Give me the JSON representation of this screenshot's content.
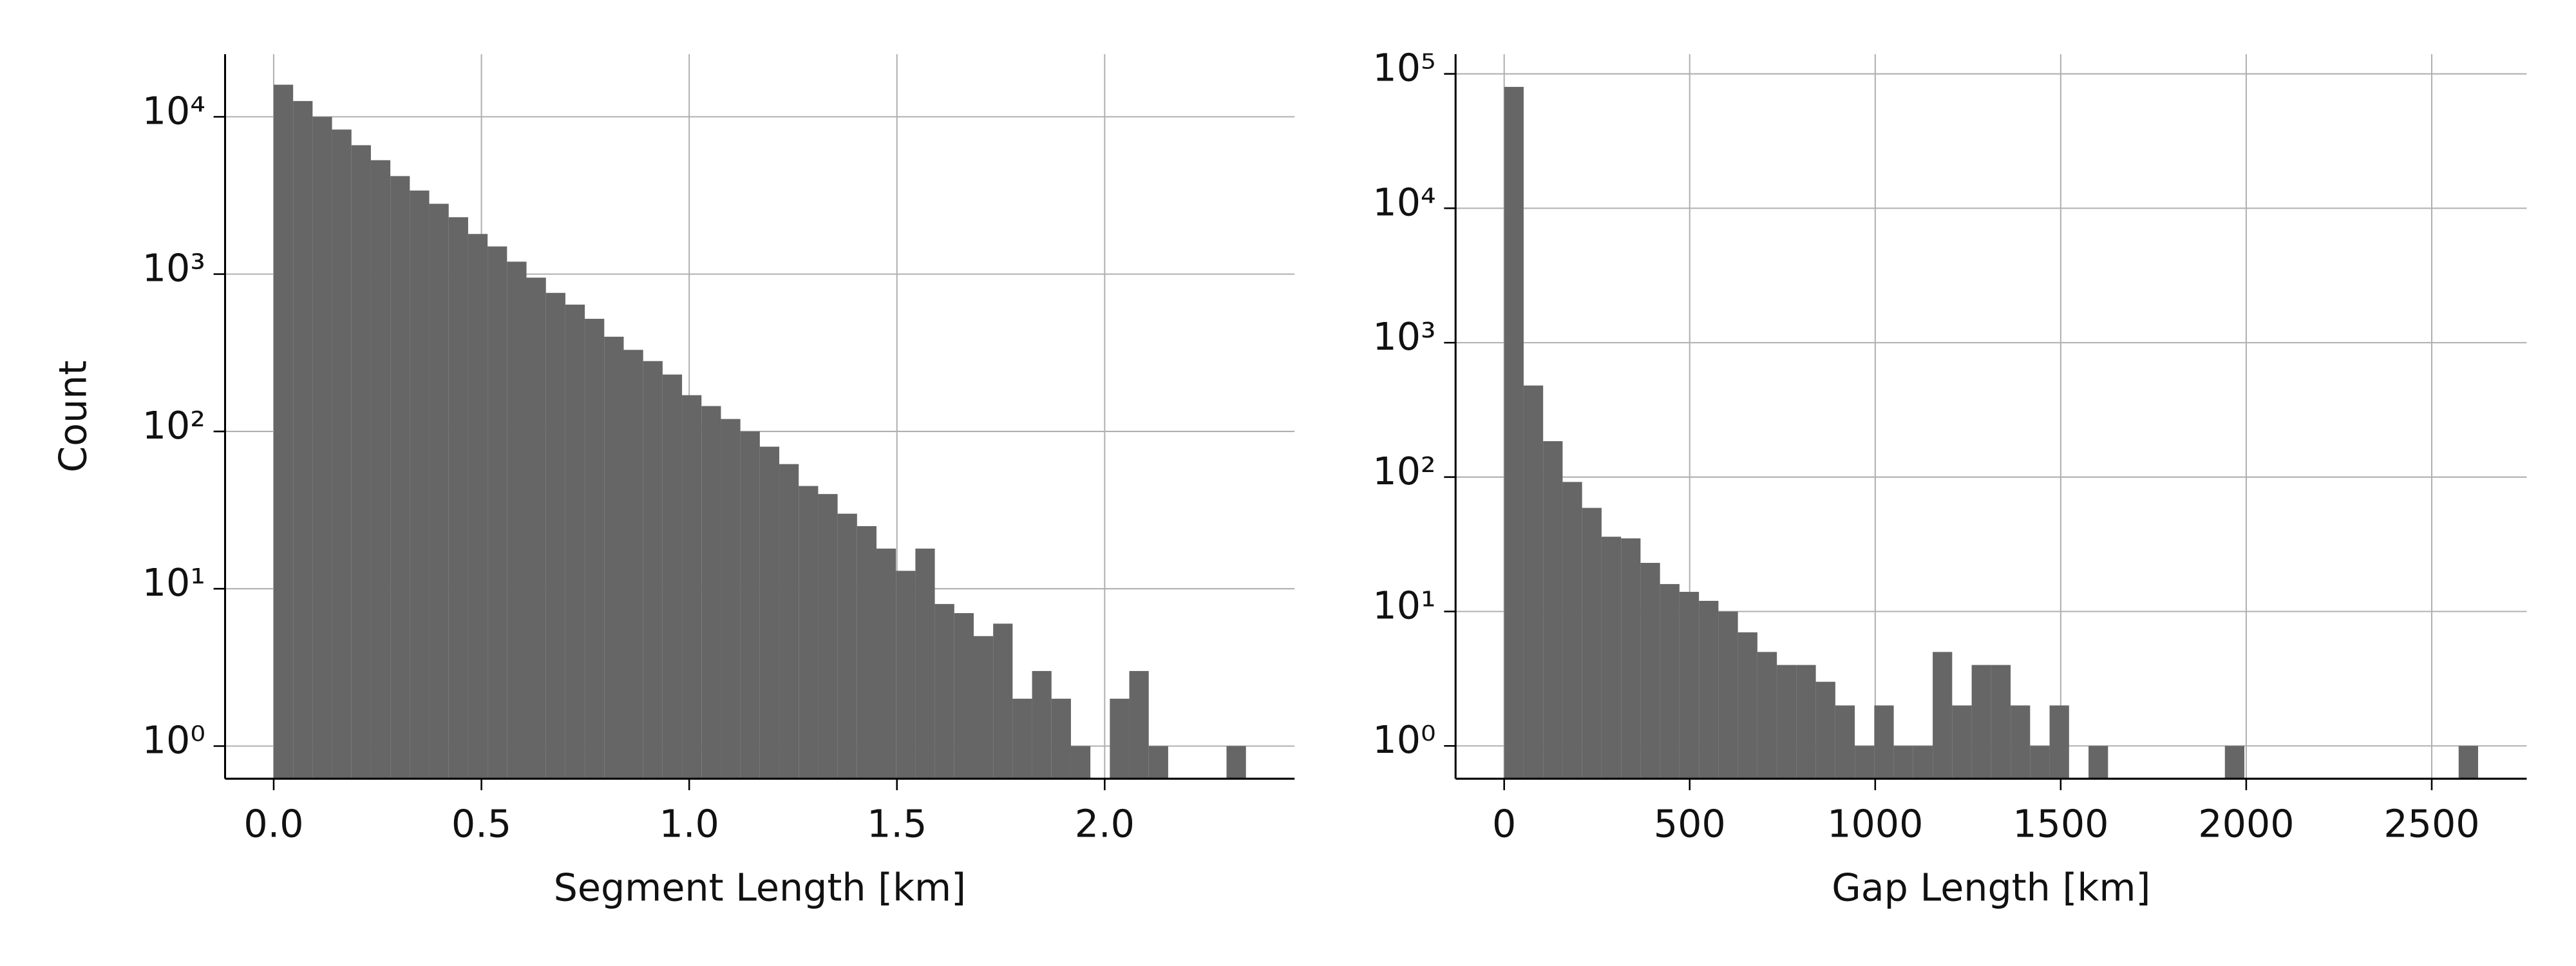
{
  "chart_data": [
    {
      "type": "histogram",
      "xlabel": "Segment Length [km]",
      "ylabel": "Count",
      "yscale": "log",
      "grid": true,
      "color": "#666666",
      "bins": [
        0,
        0.0468,
        0.0936,
        0.1404,
        0.1872,
        0.234,
        0.2808,
        0.3276,
        0.3744,
        0.4212,
        0.468,
        0.5148,
        0.5616,
        0.6084,
        0.6552,
        0.702,
        0.7488,
        0.7956,
        0.8424,
        0.8892,
        0.936,
        0.9828,
        1.0296,
        1.0764,
        1.1232,
        1.17,
        1.2168,
        1.2636,
        1.3104,
        1.3572,
        1.404,
        1.4508,
        1.4976,
        1.5444,
        1.5912,
        1.638,
        1.6848,
        1.7316,
        1.7784,
        1.8252,
        1.872,
        1.9188,
        1.9656,
        2.0124,
        2.0592,
        2.106,
        2.1528,
        2.1996,
        2.2464,
        2.2932,
        2.34
      ],
      "values": [
        16000,
        12600,
        10000,
        8300,
        6600,
        5300,
        4200,
        3400,
        2800,
        2300,
        1800,
        1500,
        1200,
        950,
        760,
        640,
        520,
        400,
        330,
        280,
        230,
        170,
        145,
        120,
        100,
        80,
        62,
        45,
        40,
        30,
        25,
        18,
        13,
        18,
        8,
        7,
        5,
        6,
        2,
        3,
        2,
        1,
        0,
        2,
        3,
        1,
        0,
        0,
        0,
        1
      ],
      "xlim": [
        -0.117,
        2.457
      ],
      "ylim": [
        0.62,
        25000
      ],
      "xticks": [
        {
          "value": 0,
          "label": "0.0"
        },
        0.5,
        {
          "value": 1,
          "label": "1.0"
        },
        1.5,
        {
          "value": 2,
          "label": "2.0"
        }
      ],
      "yticks": [
        {
          "value": 1,
          "label": "10⁰"
        },
        {
          "value": 10,
          "label": "10¹"
        },
        {
          "value": 100,
          "label": "10²"
        },
        {
          "value": 1000,
          "label": "10³"
        },
        {
          "value": 10000,
          "label": "10⁴"
        }
      ]
    },
    {
      "type": "histogram",
      "xlabel": "Gap Length [km]",
      "yscale": "log",
      "grid": true,
      "color": "#666666",
      "bins": [
        0,
        52.5,
        105,
        157.5,
        210,
        262.5,
        315,
        367.5,
        420,
        472.5,
        525,
        577.5,
        630,
        682.5,
        735,
        787.5,
        840,
        892.5,
        945,
        997.5,
        1050,
        1102.5,
        1155,
        1207.5,
        1260,
        1312.5,
        1365,
        1417.5,
        1470,
        1522.5,
        1575,
        1627.5,
        1680,
        1732.5,
        1785,
        1837.5,
        1890,
        1942.5,
        1995,
        2047.5,
        2100,
        2152.5,
        2205,
        2257.5,
        2310,
        2362.5,
        2415,
        2467.5,
        2520,
        2572.5,
        2625
      ],
      "values": [
        80000,
        480,
        185,
        92,
        59,
        36,
        35,
        23,
        16,
        14,
        12,
        10,
        7,
        5,
        4,
        4,
        3,
        2,
        1,
        2,
        1,
        1,
        5,
        2,
        4,
        4,
        2,
        1,
        2,
        0,
        1,
        0,
        0,
        0,
        0,
        0,
        0,
        1,
        0,
        0,
        0,
        0,
        0,
        0,
        0,
        0,
        0,
        0,
        0,
        1
      ],
      "xlim": [
        -131,
        2756
      ],
      "ylim": [
        0.57,
        140000
      ],
      "xticks": [
        0,
        500,
        1000,
        1500,
        2000,
        2500
      ],
      "yticks": [
        {
          "value": 1,
          "label": "10⁰"
        },
        {
          "value": 10,
          "label": "10¹"
        },
        {
          "value": 100,
          "label": "10²"
        },
        {
          "value": 1000,
          "label": "10³"
        },
        {
          "value": 10000,
          "label": "10⁴"
        },
        {
          "value": 100000,
          "label": "10⁵"
        }
      ]
    }
  ]
}
